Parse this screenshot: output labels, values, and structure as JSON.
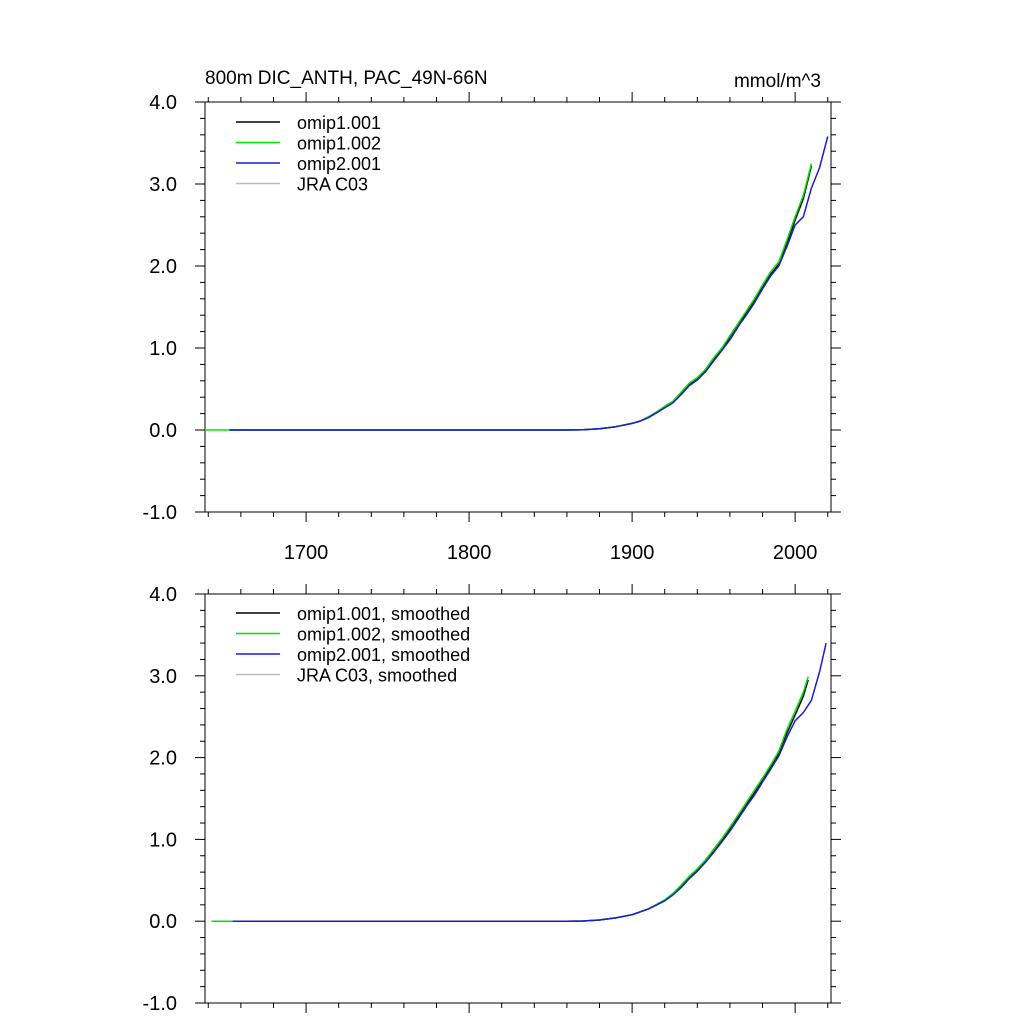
{
  "chart_data": [
    {
      "type": "line",
      "title": "800m DIC_ANTH, PAC_49N-66N",
      "units": "mmol/m^3",
      "xlim": [
        1638,
        2022
      ],
      "ylim": [
        -1.0,
        4.0
      ],
      "x_ticks": [
        1700,
        1800,
        1900,
        2000
      ],
      "x_tick_labels": [
        "1700",
        "1800",
        "1900",
        "2000"
      ],
      "y_ticks": [
        -1.0,
        0.0,
        1.0,
        2.0,
        3.0,
        4.0
      ],
      "y_tick_labels": [
        "-1.0",
        "0.0",
        "1.0",
        "2.0",
        "3.0",
        "4.0"
      ],
      "legend_position": "top-left",
      "series": [
        {
          "name": "omip1.001",
          "color": "#000000",
          "x": [
            1653,
            1860,
            1870,
            1880,
            1890,
            1900,
            1905,
            1910,
            1915,
            1920,
            1925,
            1930,
            1935,
            1940,
            1945,
            1950,
            1955,
            1960,
            1965,
            1970,
            1975,
            1980,
            1985,
            1990,
            1995,
            2000,
            2005,
            2010
          ],
          "y": [
            0.0,
            0.0,
            0.003,
            0.015,
            0.04,
            0.08,
            0.11,
            0.16,
            0.22,
            0.28,
            0.34,
            0.44,
            0.55,
            0.62,
            0.72,
            0.85,
            0.98,
            1.12,
            1.28,
            1.42,
            1.57,
            1.74,
            1.9,
            2.02,
            2.28,
            2.56,
            2.82,
            3.22
          ]
        },
        {
          "name": "omip1.002",
          "color": "#00e600",
          "x": [
            1638,
            1653,
            1860,
            1870,
            1880,
            1890,
            1900,
            1905,
            1910,
            1915,
            1920,
            1925,
            1930,
            1935,
            1940,
            1945,
            1950,
            1955,
            1960,
            1965,
            1970,
            1975,
            1980,
            1985,
            1990,
            1995,
            2000,
            2005,
            2010
          ],
          "y": [
            0.0,
            0.0,
            0.0,
            0.003,
            0.015,
            0.04,
            0.08,
            0.11,
            0.16,
            0.22,
            0.29,
            0.35,
            0.46,
            0.57,
            0.64,
            0.74,
            0.88,
            1.0,
            1.15,
            1.3,
            1.45,
            1.6,
            1.77,
            1.93,
            2.05,
            2.32,
            2.6,
            2.86,
            3.25
          ]
        },
        {
          "name": "omip2.001",
          "color": "#1a1adc",
          "x": [
            1653,
            1860,
            1870,
            1880,
            1890,
            1900,
            1905,
            1910,
            1915,
            1920,
            1925,
            1930,
            1935,
            1940,
            1945,
            1950,
            1955,
            1960,
            1965,
            1970,
            1975,
            1980,
            1985,
            1990,
            1995,
            2000,
            2005,
            2010,
            2015,
            2020
          ],
          "y": [
            0.0,
            0.0,
            0.003,
            0.015,
            0.04,
            0.08,
            0.11,
            0.15,
            0.21,
            0.27,
            0.33,
            0.43,
            0.54,
            0.61,
            0.71,
            0.84,
            0.97,
            1.1,
            1.26,
            1.4,
            1.55,
            1.72,
            1.88,
            2.0,
            2.24,
            2.5,
            2.6,
            2.95,
            3.2,
            3.58
          ]
        },
        {
          "name": "JRA C03",
          "color": "#bbbbbb",
          "x": [],
          "y": []
        }
      ]
    },
    {
      "type": "line",
      "title": "",
      "xlim": [
        1638,
        2022
      ],
      "ylim": [
        -1.0,
        4.0
      ],
      "x_ticks": [
        1700,
        1800,
        1900,
        2000
      ],
      "y_ticks": [
        -1.0,
        0.0,
        1.0,
        2.0,
        3.0,
        4.0
      ],
      "y_tick_labels": [
        "-1.0",
        "0.0",
        "1.0",
        "2.0",
        "3.0",
        "4.0"
      ],
      "legend_position": "top-left",
      "series": [
        {
          "name": "omip1.001, smoothed",
          "color": "#000000",
          "x": [
            1655,
            1860,
            1870,
            1880,
            1890,
            1900,
            1910,
            1920,
            1925,
            1930,
            1935,
            1940,
            1945,
            1950,
            1955,
            1960,
            1965,
            1970,
            1975,
            1980,
            1985,
            1990,
            1995,
            2000,
            2005,
            2008
          ],
          "y": [
            0.0,
            0.0,
            0.003,
            0.015,
            0.04,
            0.08,
            0.15,
            0.25,
            0.33,
            0.42,
            0.53,
            0.62,
            0.73,
            0.85,
            0.98,
            1.12,
            1.27,
            1.42,
            1.57,
            1.72,
            1.88,
            2.05,
            2.3,
            2.52,
            2.75,
            2.95
          ]
        },
        {
          "name": "omip1.002, smoothed",
          "color": "#00e600",
          "x": [
            1642,
            1655,
            1860,
            1870,
            1880,
            1890,
            1900,
            1910,
            1920,
            1925,
            1930,
            1935,
            1940,
            1945,
            1950,
            1955,
            1960,
            1965,
            1970,
            1975,
            1980,
            1985,
            1990,
            1995,
            2000,
            2005,
            2008
          ],
          "y": [
            0.0,
            0.0,
            0.0,
            0.003,
            0.015,
            0.04,
            0.08,
            0.15,
            0.26,
            0.34,
            0.44,
            0.55,
            0.64,
            0.75,
            0.88,
            1.01,
            1.15,
            1.3,
            1.45,
            1.6,
            1.75,
            1.91,
            2.08,
            2.35,
            2.57,
            2.8,
            2.99
          ]
        },
        {
          "name": "omip2.001, smoothed",
          "color": "#1a1adc",
          "x": [
            1655,
            1860,
            1870,
            1880,
            1890,
            1900,
            1910,
            1920,
            1925,
            1930,
            1935,
            1940,
            1945,
            1950,
            1955,
            1960,
            1965,
            1970,
            1975,
            1980,
            1985,
            1990,
            1995,
            2000,
            2005,
            2010,
            2015,
            2019
          ],
          "y": [
            0.0,
            0.0,
            0.003,
            0.015,
            0.04,
            0.08,
            0.15,
            0.25,
            0.32,
            0.41,
            0.52,
            0.61,
            0.72,
            0.84,
            0.97,
            1.1,
            1.25,
            1.4,
            1.54,
            1.7,
            1.86,
            2.02,
            2.25,
            2.45,
            2.55,
            2.7,
            3.05,
            3.4
          ]
        },
        {
          "name": "JRA C03, smoothed",
          "color": "#bbbbbb",
          "x": [],
          "y": []
        }
      ]
    }
  ]
}
